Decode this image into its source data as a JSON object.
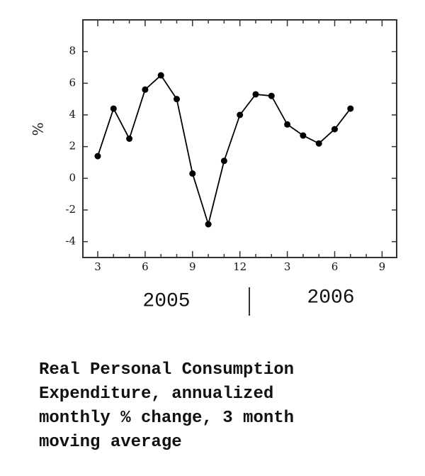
{
  "chart_data": {
    "type": "line",
    "categories": [
      "3",
      null,
      null,
      "6",
      null,
      null,
      "9",
      null,
      null,
      "12",
      null,
      null,
      "3",
      null,
      null,
      "6",
      null,
      null,
      "9"
    ],
    "series": [
      {
        "color": "#000000",
        "values": [
          1.4,
          4.4,
          2.5,
          5.6,
          6.5,
          5.0,
          0.3,
          -2.9,
          1.1,
          4.0,
          5.3,
          5.2,
          3.4,
          2.7,
          2.2,
          3.1,
          4.4,
          null,
          null
        ]
      }
    ],
    "ylim": [
      -5,
      10
    ],
    "yticks": [
      -4,
      -2,
      0,
      2,
      4,
      6,
      8
    ],
    "y_label": "%",
    "year_labels": [
      "2005",
      "2006"
    ],
    "caption": "Real Personal Consumption Expenditure, annualized monthly % change, 3 month moving average",
    "grid": false
  }
}
